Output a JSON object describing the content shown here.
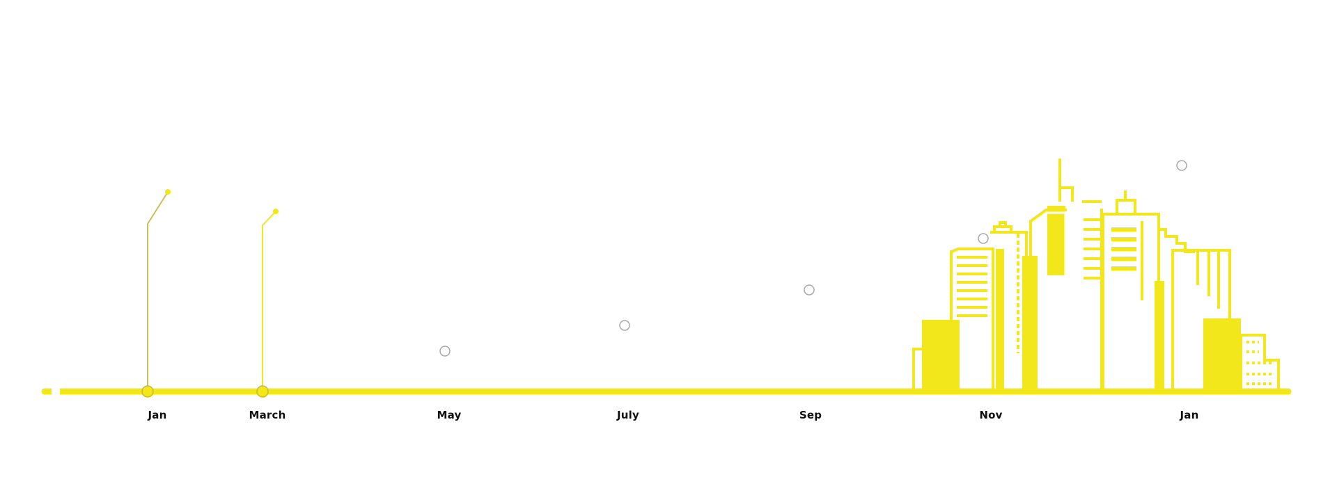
{
  "colors": {
    "accent": "#f1e71a",
    "stem": "#cbbe5a",
    "node_outline": "#a8a8a8",
    "label": "#111111"
  },
  "timeline": {
    "months": [
      {
        "label": "Jan",
        "state": "active"
      },
      {
        "label": "March",
        "state": "active"
      },
      {
        "label": "May",
        "state": "pending"
      },
      {
        "label": "July",
        "state": "pending"
      },
      {
        "label": "Sep",
        "state": "pending"
      },
      {
        "label": "Nov",
        "state": "pending"
      },
      {
        "label": "Jan",
        "state": "pending"
      }
    ]
  },
  "illustration": {
    "icon": "city-skyline-icon"
  }
}
